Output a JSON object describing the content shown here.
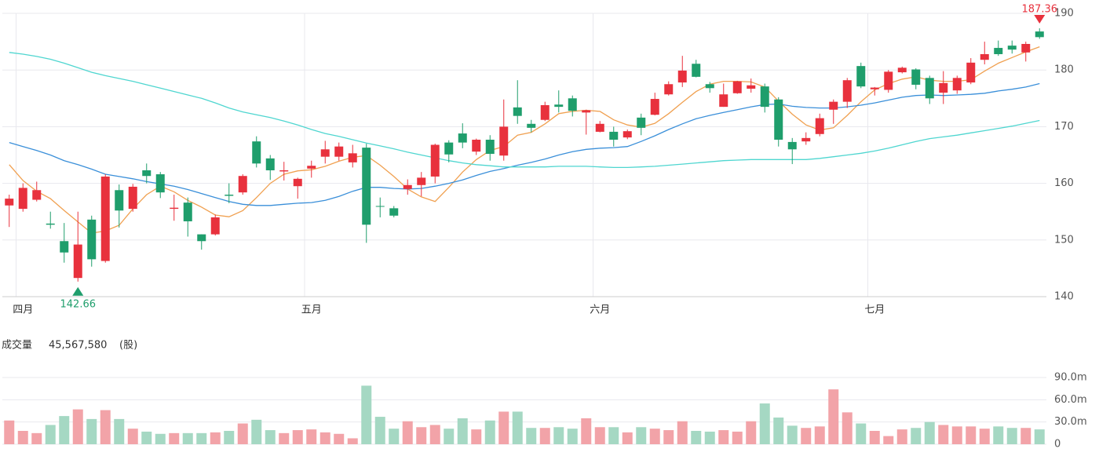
{
  "chart_data": [
    {
      "type": "candlestick",
      "categories": [
        null,
        "四月",
        null,
        null,
        null,
        null,
        null,
        null,
        null,
        null,
        null,
        null,
        null,
        null,
        null,
        null,
        null,
        null,
        null,
        null,
        null,
        null,
        "五月",
        null,
        null,
        null,
        null,
        null,
        null,
        null,
        null,
        null,
        null,
        null,
        null,
        null,
        null,
        null,
        null,
        null,
        null,
        null,
        null,
        "六月",
        null,
        null,
        null,
        null,
        null,
        null,
        null,
        null,
        null,
        null,
        null,
        null,
        null,
        null,
        null,
        null,
        null,
        null,
        null,
        "七月",
        null,
        null,
        null,
        null,
        null,
        null,
        null,
        null,
        null,
        null,
        null,
        null
      ],
      "open": [
        156.1,
        155.5,
        157.1,
        152.9,
        149.8,
        143.3,
        153.6,
        146.3,
        158.8,
        155.5,
        162.3,
        161.6,
        155.5,
        156.6,
        151,
        151,
        158,
        158.4,
        167.4,
        164.4,
        162.1,
        159.5,
        162.6,
        164.7,
        164.7,
        163.7,
        166.3,
        156,
        155.6,
        159,
        159.7,
        161.2,
        167.2,
        168.8,
        165.6,
        167.7,
        164.9,
        173.4,
        170.5,
        171.2,
        173.9,
        175,
        172.5,
        169.1,
        169.1,
        168.1,
        171.6,
        172.1,
        175.7,
        177.8,
        181.1,
        177.5,
        173.5,
        175.9,
        176.7,
        177.1,
        174.8,
        167.3,
        167.4,
        168.7,
        173,
        174.4,
        180.7,
        176.6,
        176.5,
        179.6,
        180.1,
        178.6,
        176,
        176.4,
        177.8,
        181.8,
        183.9,
        184.3,
        183.1,
        186.8
      ],
      "close": [
        157.3,
        159.2,
        158.8,
        152.7,
        147.8,
        149.2,
        146.6,
        161.2,
        155.2,
        159.4,
        161.3,
        158.4,
        155.7,
        153.3,
        149.8,
        154,
        157.8,
        161.3,
        163.5,
        162.3,
        162.3,
        160.8,
        163.1,
        166,
        166.5,
        165.3,
        152.7,
        155.9,
        154.3,
        159.7,
        161,
        166.8,
        165.1,
        167.2,
        167.7,
        165.2,
        170,
        171.9,
        169.8,
        173.8,
        173.5,
        172.8,
        172.9,
        170.5,
        167.7,
        169.2,
        169.8,
        174.9,
        177.5,
        179.9,
        178.8,
        176.8,
        175.7,
        178,
        177.3,
        173.5,
        167.7,
        166,
        168,
        171.5,
        174.4,
        178.2,
        177.1,
        176.9,
        179.7,
        180.4,
        177.4,
        175,
        177.7,
        178.6,
        181.3,
        182.8,
        182.8,
        183.6,
        184.6,
        185.8
      ],
      "low": [
        152.3,
        155,
        156.8,
        152,
        146,
        142.66,
        145.3,
        146,
        152.2,
        155,
        160,
        157.4,
        153.4,
        150.6,
        148.3,
        150.8,
        156.5,
        158,
        162.8,
        160.6,
        160.5,
        157.3,
        161,
        163.5,
        164,
        162.8,
        149.5,
        154,
        154,
        158,
        157.7,
        160,
        163.7,
        166.2,
        165,
        164,
        164,
        170.5,
        169,
        171,
        172.5,
        171.8,
        168.6,
        169,
        166.5,
        167.8,
        168.5,
        172,
        175.5,
        177,
        178.7,
        176,
        173.5,
        175.8,
        176,
        172.5,
        166.5,
        163.4,
        166.8,
        168.3,
        170.5,
        173.3,
        176.8,
        175.5,
        176,
        179.4,
        176.6,
        174,
        174,
        175.8,
        177.5,
        181,
        182.5,
        182.9,
        181.5,
        185.5
      ],
      "high": [
        158,
        160,
        160.3,
        155,
        153,
        155,
        154.3,
        161.6,
        159.8,
        159.9,
        163.5,
        162,
        158,
        157.5,
        151,
        154.5,
        160,
        161.6,
        168.3,
        165,
        163.8,
        161,
        164,
        167.5,
        167.2,
        166.8,
        167,
        157.5,
        156,
        160.7,
        162,
        167,
        167.6,
        170.6,
        167.9,
        168.5,
        174.8,
        178.2,
        171.2,
        174.4,
        176.4,
        175.5,
        173,
        171,
        170,
        169.5,
        172.3,
        176,
        178,
        182.5,
        181.8,
        177.9,
        177.6,
        178.1,
        178.5,
        177.6,
        175.2,
        168,
        169,
        172.3,
        174.8,
        178.6,
        181.3,
        177,
        180,
        180.6,
        180.3,
        179,
        179.8,
        179,
        182.1,
        185,
        185.2,
        185.2,
        185,
        187.36
      ],
      "up_color": "#e8313d",
      "down_color": "#1f9e6c",
      "ma_lines": [
        {
          "color": "#f0a050",
          "values": [
            163.3,
            160.5,
            158.6,
            157.3,
            155.2,
            153.2,
            151.2,
            151.6,
            152.6,
            155.5,
            158,
            159.5,
            158.5,
            157,
            155.8,
            154.4,
            154.1,
            155.2,
            157.5,
            160,
            161.6,
            162.2,
            162.4,
            163,
            163.9,
            164.6,
            164.9,
            163.2,
            161.2,
            159,
            157.6,
            156.8,
            159.3,
            162,
            164.2,
            165.8,
            166.5,
            168.5,
            169,
            170.5,
            172.3,
            172.7,
            172.9,
            172.7,
            171.2,
            170.3,
            169.9,
            170.6,
            172.3,
            174.3,
            176.2,
            177.5,
            178,
            178,
            177.9,
            177,
            174.5,
            172.2,
            170.3,
            169.4,
            169.8,
            172,
            174.4,
            176.5,
            177.6,
            178.4,
            178.8,
            178.2,
            178,
            178,
            178.3,
            179.8,
            181.2,
            182.2,
            183.2,
            184.1
          ]
        },
        {
          "color": "#3a8fd9",
          "values": [
            167.2,
            166.5,
            165.8,
            165,
            164,
            163.3,
            162.5,
            161.6,
            161.2,
            160.8,
            160.3,
            159.9,
            159.5,
            158.9,
            158.2,
            157.5,
            156.8,
            156.3,
            156.1,
            156.1,
            156.3,
            156.5,
            156.6,
            157,
            157.7,
            158.6,
            159.3,
            159.3,
            159.1,
            159,
            159.1,
            159.5,
            160,
            160.6,
            161.4,
            162.1,
            162.6,
            163.2,
            163.7,
            164.3,
            165,
            165.6,
            166,
            166.2,
            166.3,
            166.5,
            167.4,
            168.4,
            169.5,
            170.5,
            171.4,
            172,
            172.5,
            173,
            173.5,
            173.9,
            174,
            173.6,
            173.4,
            173.3,
            173.3,
            173.5,
            173.8,
            174.2,
            174.7,
            175.2,
            175.5,
            175.6,
            175.5,
            175.6,
            175.7,
            175.9,
            176.3,
            176.6,
            177,
            177.6
          ]
        },
        {
          "color": "#4fd6d0",
          "values": [
            183.1,
            182.8,
            182.4,
            181.9,
            181.2,
            180.4,
            179.6,
            179,
            178.5,
            178,
            177.4,
            176.8,
            176.2,
            175.6,
            175,
            174.2,
            173.3,
            172.6,
            172.1,
            171.6,
            171,
            170.3,
            169.5,
            168.8,
            168.3,
            167.7,
            167.1,
            166.6,
            166.1,
            165.5,
            165,
            164.5,
            164,
            163.6,
            163.3,
            163.1,
            162.9,
            162.9,
            162.9,
            162.9,
            163,
            163,
            163,
            162.9,
            162.8,
            162.8,
            162.9,
            163,
            163.2,
            163.4,
            163.6,
            163.8,
            164,
            164.1,
            164.2,
            164.2,
            164.2,
            164.2,
            164.2,
            164.4,
            164.7,
            165,
            165.3,
            165.7,
            166.2,
            166.8,
            167.4,
            167.9,
            168.2,
            168.5,
            168.9,
            169.3,
            169.7,
            170.1,
            170.6,
            171.1
          ]
        }
      ],
      "max_label": 187.36,
      "min_label": 142.66,
      "ylim": [
        140,
        190
      ],
      "yticks": [
        140,
        150,
        160,
        170,
        180,
        190
      ],
      "grid": true
    },
    {
      "type": "bar",
      "title": "成交量",
      "current_volume": "45,567,580",
      "unit": "(股)",
      "values": [
        32,
        18,
        15,
        26,
        38,
        47,
        34,
        46,
        34,
        21,
        17,
        14,
        15,
        15,
        15,
        16,
        18,
        28,
        33,
        19,
        15,
        19,
        20,
        16,
        14,
        8,
        79,
        37,
        21,
        31,
        23,
        26,
        21,
        35,
        20,
        32,
        44,
        44,
        22,
        22,
        23,
        21,
        35,
        23,
        23,
        16,
        23,
        21,
        19,
        31,
        18,
        17,
        19,
        17,
        31,
        55,
        36,
        25,
        22,
        24,
        74,
        43,
        28,
        18,
        11,
        20,
        22,
        30,
        26,
        24,
        24,
        21,
        24,
        22,
        22,
        20
      ],
      "up_color": "#f2a3a8",
      "down_color": "#a5d8c3",
      "ylim": [
        0,
        90
      ],
      "yticks": [
        0,
        {
          "value": 30,
          "label": "30.0m"
        },
        {
          "value": 60,
          "label": "60.0m"
        },
        {
          "value": 90,
          "label": "90.0m"
        }
      ],
      "grid": true
    }
  ]
}
